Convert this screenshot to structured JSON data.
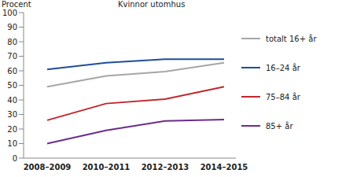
{
  "chart_data": {
    "type": "line",
    "title": "Kvinnor utomhus",
    "ylabel": "Procent",
    "categories": [
      "2008–2009",
      "2010–2011",
      "2012–2013",
      "2014–2015"
    ],
    "series": [
      {
        "name": "totalt 16+ år",
        "color": "#a6a6a6",
        "values": [
          49,
          56.5,
          59.5,
          65.5
        ]
      },
      {
        "name": "16–24 år",
        "color": "#1f4e9a",
        "values": [
          61,
          65.5,
          68,
          68
        ]
      },
      {
        "name": "75–84 år",
        "color": "#c0282d",
        "values": [
          26,
          37.5,
          40.5,
          49
        ]
      },
      {
        "name": "85+ år",
        "color": "#6b2d8c",
        "values": [
          10,
          19,
          25.5,
          26.5
        ]
      }
    ],
    "ylim": [
      0,
      100
    ],
    "yticks": [
      0,
      10,
      20,
      30,
      40,
      50,
      60,
      70,
      80,
      90,
      100
    ],
    "grid": false,
    "legend": "right"
  }
}
